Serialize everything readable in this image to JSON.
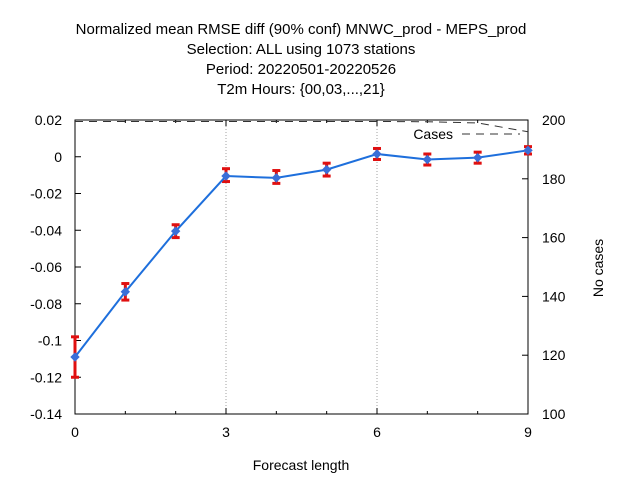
{
  "chart_data": {
    "type": "line",
    "title_lines": [
      "Normalized mean RMSE diff (90% conf) MNWC_prod - MEPS_prod",
      "Selection: ALL using  1073 stations",
      "Period: 20220501-20220526",
      "T2m   Hours: {00,03,...,21}"
    ],
    "xlabel": "Forecast length",
    "ylabel": "",
    "y2label": "No cases",
    "xlim": [
      0,
      9
    ],
    "ylim": [
      -0.14,
      0.02
    ],
    "y2lim": [
      100,
      200
    ],
    "x_ticks": [
      0,
      3,
      6,
      9
    ],
    "y_ticks": [
      -0.14,
      -0.12,
      -0.1,
      -0.08,
      -0.06,
      -0.04,
      -0.02,
      0,
      0.02
    ],
    "y_tick_labels": [
      "-0.14",
      "-0.12",
      "-0.1",
      "-0.08",
      "-0.06",
      "-0.04",
      "-0.02",
      "0",
      "0.02"
    ],
    "y2_ticks": [
      100,
      120,
      140,
      160,
      180,
      200
    ],
    "grid": "vertical-dotted-at-x-ticks",
    "legend": {
      "entry": "Cases",
      "position": "top-right"
    },
    "series": [
      {
        "type": "line-with-errorbars",
        "color": "#1e6fdc",
        "errorbar_color": "#e01010",
        "x": [
          0,
          1,
          2,
          3,
          4,
          5,
          6,
          7,
          8,
          9
        ],
        "values": [
          -0.109,
          -0.0735,
          -0.0405,
          -0.0105,
          -0.0115,
          -0.007,
          0.0015,
          -0.0015,
          -0.0005,
          0.0035
        ],
        "err_low": [
          -0.12,
          -0.078,
          -0.044,
          -0.0135,
          -0.0145,
          -0.0105,
          -0.0015,
          -0.0045,
          -0.0035,
          0.0015
        ],
        "err_high": [
          -0.098,
          -0.069,
          -0.037,
          -0.0065,
          -0.0075,
          -0.0035,
          0.0045,
          0.0015,
          0.0025,
          0.0055
        ]
      },
      {
        "name": "Cases",
        "type": "dashed-line",
        "axis": "right",
        "color": "#333333",
        "x": [
          0,
          1,
          2,
          3,
          4,
          5,
          6,
          7,
          8,
          9
        ],
        "values": [
          199.5,
          199.5,
          199.5,
          199.5,
          199.5,
          199.5,
          199.5,
          199.4,
          199.0,
          196.0
        ]
      }
    ]
  }
}
